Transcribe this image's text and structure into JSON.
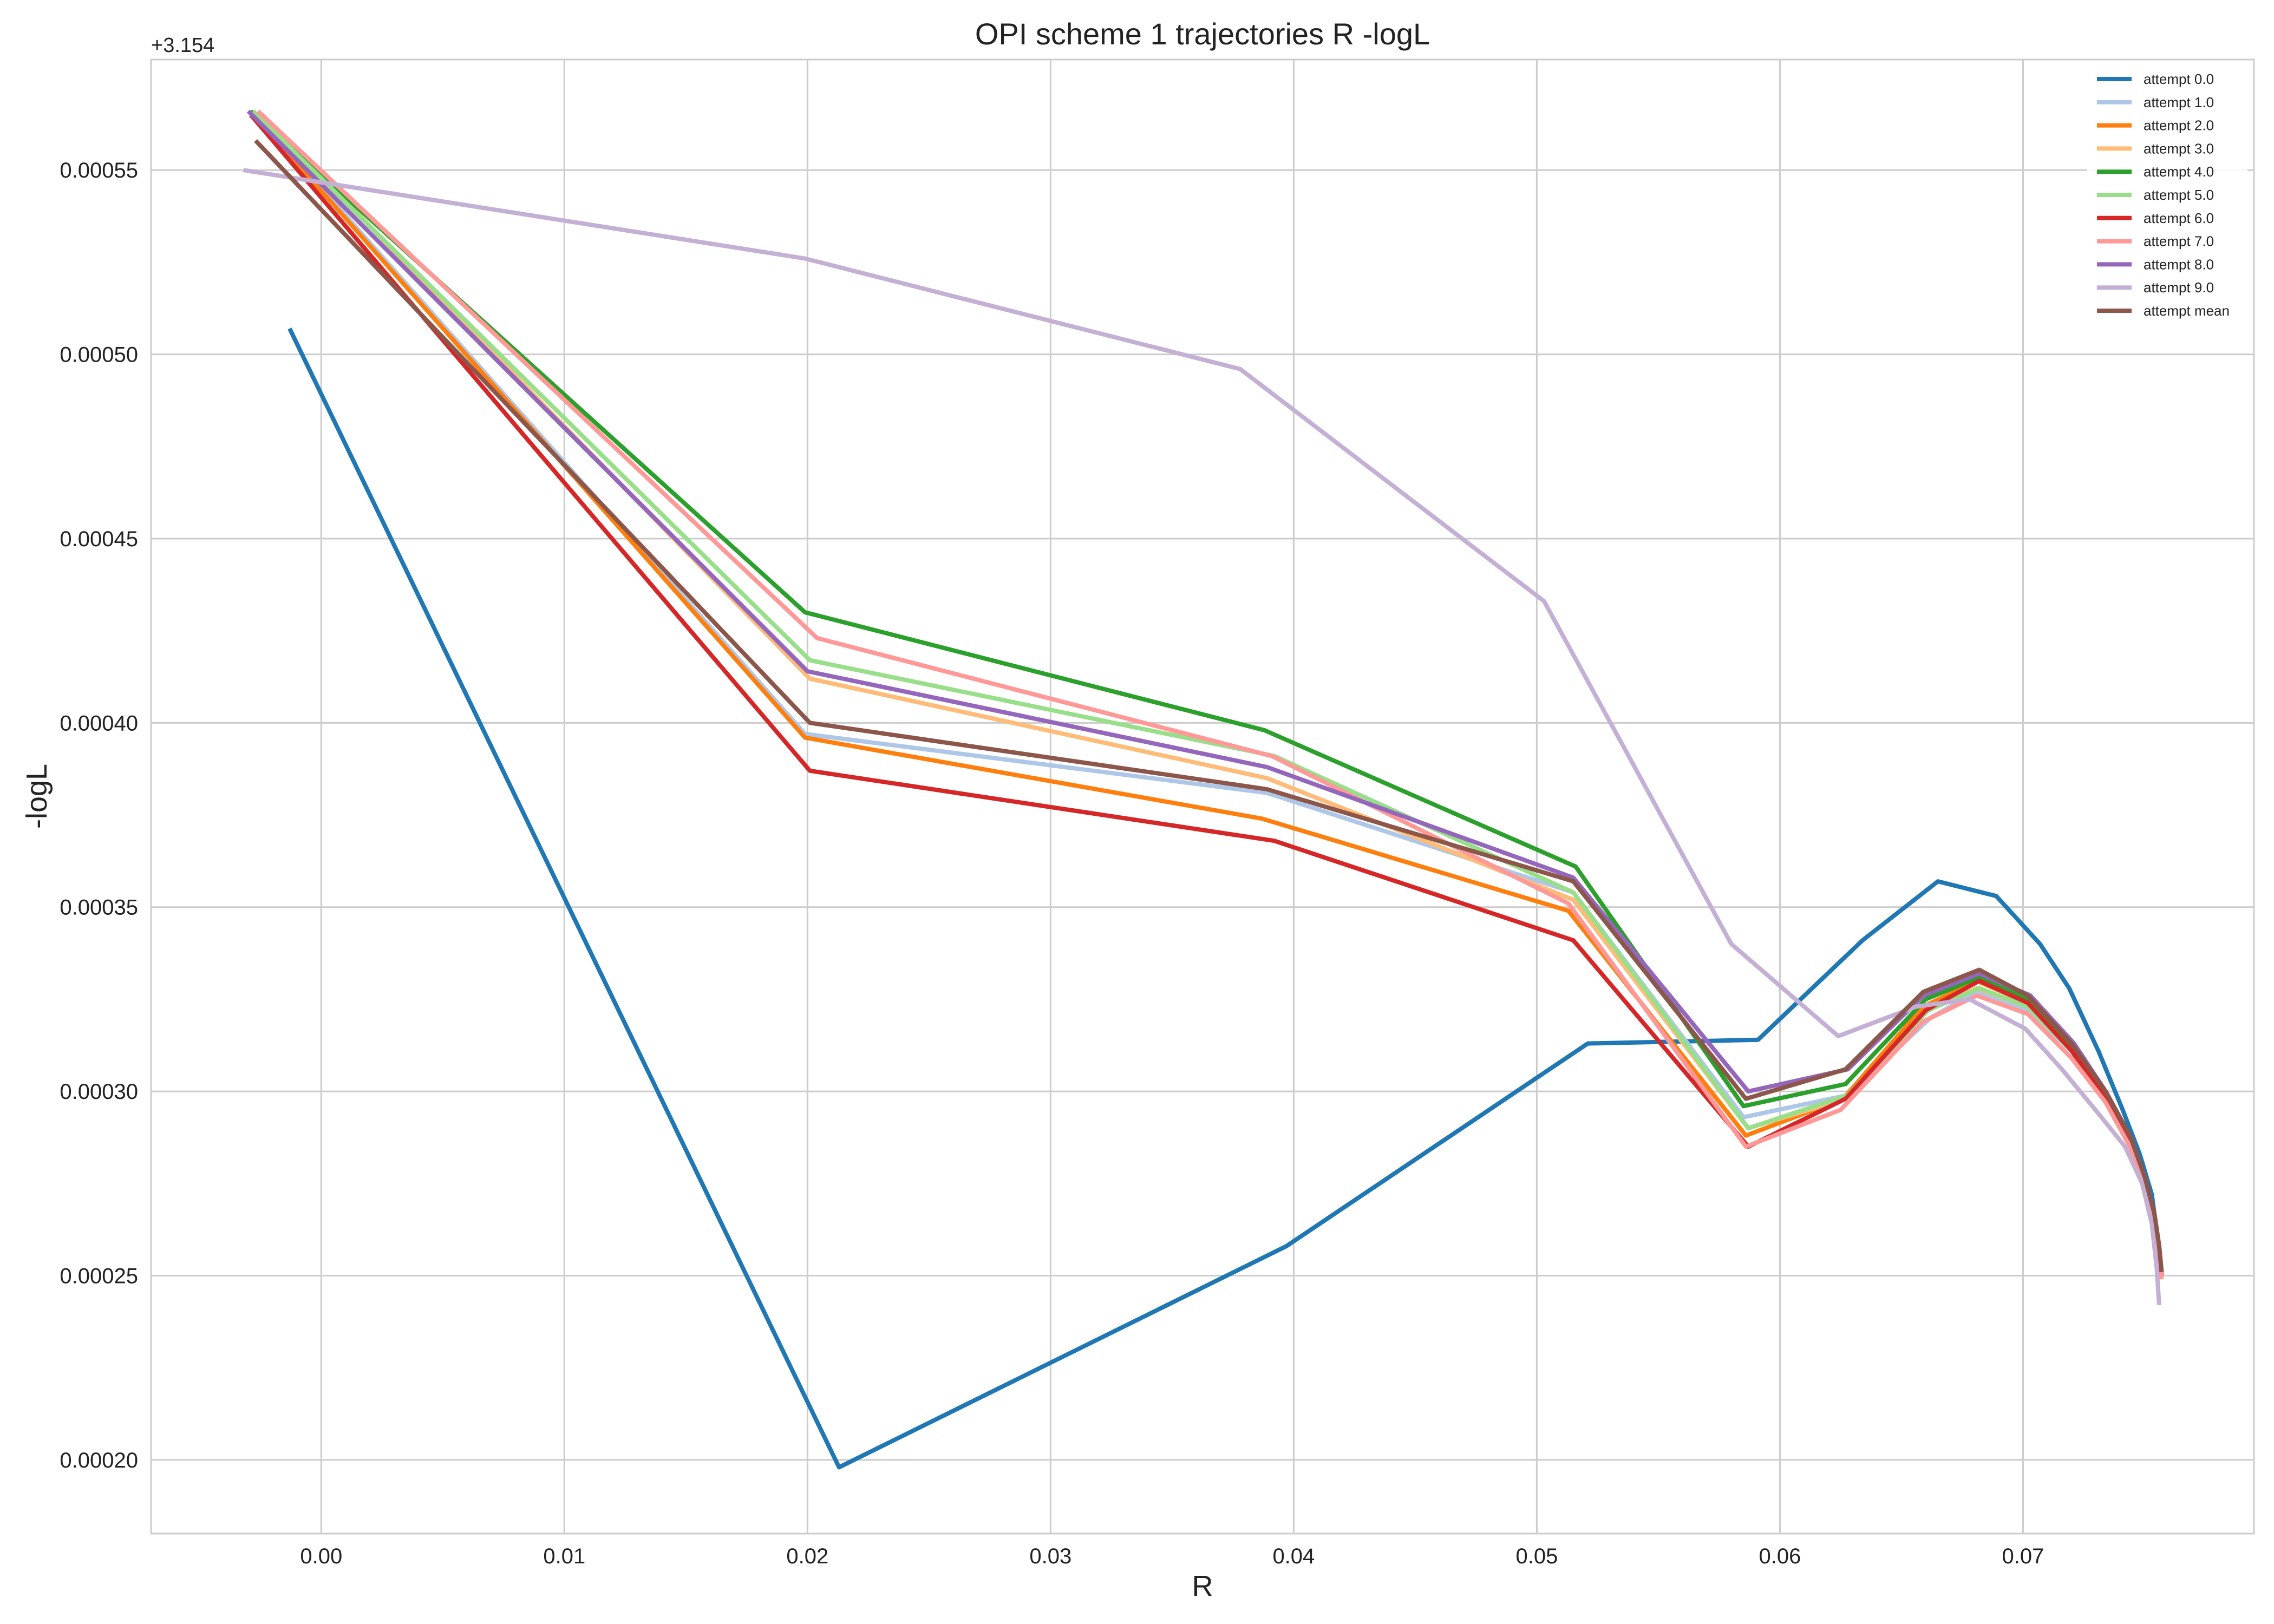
{
  "chart_data": {
    "type": "line",
    "title": "OPI scheme 1 trajectories R -logL",
    "xlabel": "R",
    "ylabel": "-logL",
    "y_offset_label": "+3.154",
    "y_offset": 3.154,
    "xlim": [
      -0.007,
      0.0795
    ],
    "ylim": [
      0.00018,
      0.00058
    ],
    "xticks": [
      0.0,
      0.01,
      0.02,
      0.03,
      0.04,
      0.05,
      0.06,
      0.07
    ],
    "xtick_labels": [
      "0.00",
      "0.01",
      "0.02",
      "0.03",
      "0.04",
      "0.05",
      "0.06",
      "0.07"
    ],
    "yticks": [
      0.0002,
      0.00025,
      0.0003,
      0.00035,
      0.0004,
      0.00045,
      0.0005,
      0.00055
    ],
    "ytick_labels": [
      "0.00020",
      "0.00025",
      "0.00030",
      "0.00035",
      "0.00040",
      "0.00045",
      "0.00050",
      "0.00055"
    ],
    "grid": true,
    "legend_position": "top-right",
    "series": [
      {
        "name": "attempt 0.0",
        "color": "#1f77b4",
        "points": [
          [
            -0.0013,
            0.000507
          ],
          [
            0.0213,
            0.000198
          ],
          [
            0.0397,
            0.000258
          ],
          [
            0.0521,
            0.000313
          ],
          [
            0.0591,
            0.000314
          ],
          [
            0.0634,
            0.000341
          ],
          [
            0.0665,
            0.000357
          ],
          [
            0.0689,
            0.000353
          ],
          [
            0.0707,
            0.00034
          ],
          [
            0.0719,
            0.000328
          ],
          [
            0.0731,
            0.000311
          ],
          [
            0.0741,
            0.000295
          ],
          [
            0.0748,
            0.000283
          ],
          [
            0.0753,
            0.000272
          ],
          [
            0.0755,
            0.000262
          ],
          [
            0.0756,
            0.000255
          ]
        ]
      },
      {
        "name": "attempt 1.0",
        "color": "#aec7e8",
        "points": [
          [
            -0.0028,
            0.000566
          ],
          [
            0.0199,
            0.000397
          ],
          [
            0.0389,
            0.000381
          ],
          [
            0.0515,
            0.000354
          ],
          [
            0.0585,
            0.000293
          ],
          [
            0.0628,
            0.000299
          ],
          [
            0.0662,
            0.00032
          ],
          [
            0.0681,
            0.000327
          ],
          [
            0.0702,
            0.000322
          ],
          [
            0.072,
            0.000311
          ],
          [
            0.0734,
            0.000298
          ],
          [
            0.0744,
            0.000287
          ],
          [
            0.075,
            0.000277
          ],
          [
            0.0754,
            0.000267
          ],
          [
            0.0756,
            0.000258
          ],
          [
            0.0757,
            0.000251
          ]
        ]
      },
      {
        "name": "attempt 2.0",
        "color": "#ff7f0e",
        "points": [
          [
            -0.0029,
            0.000566
          ],
          [
            0.0199,
            0.000396
          ],
          [
            0.0387,
            0.000374
          ],
          [
            0.0513,
            0.000349
          ],
          [
            0.0586,
            0.000288
          ],
          [
            0.0626,
            0.000298
          ],
          [
            0.0659,
            0.000323
          ],
          [
            0.0681,
            0.00033
          ],
          [
            0.0702,
            0.000324
          ],
          [
            0.072,
            0.000311
          ],
          [
            0.0734,
            0.000298
          ],
          [
            0.0744,
            0.000286
          ],
          [
            0.075,
            0.000276
          ],
          [
            0.0754,
            0.000266
          ],
          [
            0.0756,
            0.000257
          ],
          [
            0.0757,
            0.00025
          ]
        ]
      },
      {
        "name": "attempt 3.0",
        "color": "#ffbb78",
        "points": [
          [
            -0.0026,
            0.000566
          ],
          [
            0.0201,
            0.000412
          ],
          [
            0.0389,
            0.000385
          ],
          [
            0.0515,
            0.000352
          ],
          [
            0.0587,
            0.00029
          ],
          [
            0.0627,
            0.000298
          ],
          [
            0.066,
            0.000322
          ],
          [
            0.0681,
            0.000328
          ],
          [
            0.0702,
            0.000323
          ],
          [
            0.072,
            0.000311
          ],
          [
            0.0734,
            0.000298
          ],
          [
            0.0744,
            0.000286
          ],
          [
            0.075,
            0.000276
          ],
          [
            0.0754,
            0.000266
          ],
          [
            0.0756,
            0.000257
          ],
          [
            0.0757,
            0.00025
          ]
        ]
      },
      {
        "name": "attempt 4.0",
        "color": "#2ca02c",
        "points": [
          [
            -0.0029,
            0.000566
          ],
          [
            0.0199,
            0.00043
          ],
          [
            0.0388,
            0.000398
          ],
          [
            0.0516,
            0.000361
          ],
          [
            0.0585,
            0.000296
          ],
          [
            0.0627,
            0.000302
          ],
          [
            0.066,
            0.000325
          ],
          [
            0.0682,
            0.000331
          ],
          [
            0.0703,
            0.000325
          ],
          [
            0.0721,
            0.000312
          ],
          [
            0.0734,
            0.000299
          ],
          [
            0.0744,
            0.000287
          ],
          [
            0.075,
            0.000277
          ],
          [
            0.0754,
            0.000267
          ],
          [
            0.0756,
            0.000258
          ],
          [
            0.0757,
            0.000251
          ]
        ]
      },
      {
        "name": "attempt 5.0",
        "color": "#98df8a",
        "points": [
          [
            -0.0028,
            0.000566
          ],
          [
            0.0201,
            0.000417
          ],
          [
            0.0392,
            0.000391
          ],
          [
            0.0515,
            0.000354
          ],
          [
            0.0587,
            0.00029
          ],
          [
            0.0628,
            0.000299
          ],
          [
            0.0661,
            0.000322
          ],
          [
            0.0682,
            0.000328
          ],
          [
            0.0702,
            0.000323
          ],
          [
            0.072,
            0.000311
          ],
          [
            0.0734,
            0.000298
          ],
          [
            0.0744,
            0.000286
          ],
          [
            0.075,
            0.000276
          ],
          [
            0.0754,
            0.000266
          ],
          [
            0.0756,
            0.000257
          ],
          [
            0.0757,
            0.00025
          ]
        ]
      },
      {
        "name": "attempt 6.0",
        "color": "#d62728",
        "points": [
          [
            -0.0029,
            0.000565
          ],
          [
            0.0201,
            0.000387
          ],
          [
            0.0392,
            0.000368
          ],
          [
            0.0515,
            0.000341
          ],
          [
            0.0587,
            0.000285
          ],
          [
            0.0627,
            0.000298
          ],
          [
            0.066,
            0.000322
          ],
          [
            0.0682,
            0.00033
          ],
          [
            0.0702,
            0.000324
          ],
          [
            0.072,
            0.000311
          ],
          [
            0.0734,
            0.000298
          ],
          [
            0.0744,
            0.000286
          ],
          [
            0.075,
            0.000276
          ],
          [
            0.0754,
            0.000266
          ],
          [
            0.0756,
            0.000257
          ],
          [
            0.0757,
            0.00025
          ]
        ]
      },
      {
        "name": "attempt 7.0",
        "color": "#ff9896",
        "points": [
          [
            -0.0026,
            0.000566
          ],
          [
            0.0204,
            0.000423
          ],
          [
            0.0391,
            0.000391
          ],
          [
            0.0513,
            0.000351
          ],
          [
            0.0586,
            0.000285
          ],
          [
            0.0625,
            0.000295
          ],
          [
            0.0659,
            0.000319
          ],
          [
            0.0681,
            0.000326
          ],
          [
            0.0702,
            0.000321
          ],
          [
            0.072,
            0.000309
          ],
          [
            0.0734,
            0.000297
          ],
          [
            0.0744,
            0.000285
          ],
          [
            0.075,
            0.000275
          ],
          [
            0.0754,
            0.000265
          ],
          [
            0.0756,
            0.000256
          ],
          [
            0.0757,
            0.000249
          ]
        ]
      },
      {
        "name": "attempt 8.0",
        "color": "#9467bd",
        "points": [
          [
            -0.003,
            0.000566
          ],
          [
            0.02,
            0.000414
          ],
          [
            0.0389,
            0.000388
          ],
          [
            0.0515,
            0.000358
          ],
          [
            0.0587,
            0.0003
          ],
          [
            0.0628,
            0.000306
          ],
          [
            0.0659,
            0.000326
          ],
          [
            0.0682,
            0.000332
          ],
          [
            0.0703,
            0.000326
          ],
          [
            0.0721,
            0.000313
          ],
          [
            0.0734,
            0.0003
          ],
          [
            0.0744,
            0.000288
          ],
          [
            0.075,
            0.000277
          ],
          [
            0.0754,
            0.000267
          ],
          [
            0.0756,
            0.000258
          ],
          [
            0.0757,
            0.000251
          ]
        ]
      },
      {
        "name": "attempt 9.0",
        "color": "#c5b0d5",
        "points": [
          [
            -0.0032,
            0.00055
          ],
          [
            0.0199,
            0.000526
          ],
          [
            0.0378,
            0.000496
          ],
          [
            0.0503,
            0.000433
          ],
          [
            0.058,
            0.00034
          ],
          [
            0.0624,
            0.000315
          ],
          [
            0.0656,
            0.000323
          ],
          [
            0.0678,
            0.000325
          ],
          [
            0.0701,
            0.000317
          ],
          [
            0.0716,
            0.000306
          ],
          [
            0.0731,
            0.000294
          ],
          [
            0.0742,
            0.000285
          ],
          [
            0.0749,
            0.000275
          ],
          [
            0.0753,
            0.000264
          ],
          [
            0.0755,
            0.000252
          ],
          [
            0.0756,
            0.000242
          ]
        ]
      },
      {
        "name": "attempt mean",
        "color": "#8c564b",
        "points": [
          [
            -0.0027,
            0.000558
          ],
          [
            0.0201,
            0.0004
          ],
          [
            0.0389,
            0.000382
          ],
          [
            0.0515,
            0.000357
          ],
          [
            0.0586,
            0.000298
          ],
          [
            0.0627,
            0.000306
          ],
          [
            0.0659,
            0.000327
          ],
          [
            0.0682,
            0.000333
          ],
          [
            0.0702,
            0.000326
          ],
          [
            0.072,
            0.000313
          ],
          [
            0.0734,
            0.0003
          ],
          [
            0.0744,
            0.000288
          ],
          [
            0.075,
            0.000277
          ],
          [
            0.0754,
            0.000267
          ],
          [
            0.0756,
            0.000258
          ],
          [
            0.0757,
            0.000251
          ]
        ]
      }
    ]
  }
}
